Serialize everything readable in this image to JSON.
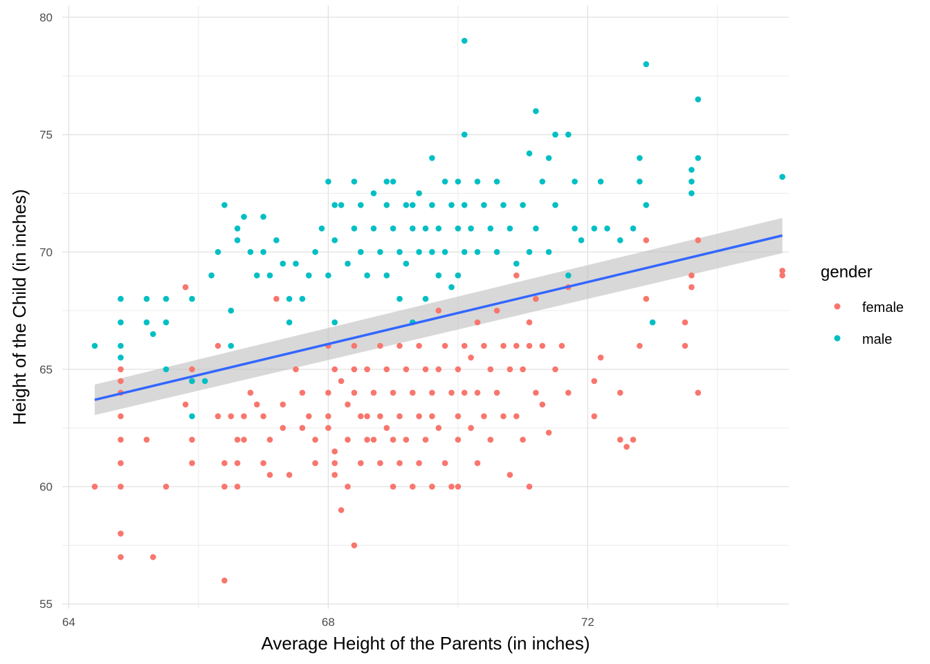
{
  "chart_data": {
    "type": "scatter",
    "xlabel": "Average Height of the Parents (in inches)",
    "ylabel": "Height of the Child (in inches)",
    "xlim": [
      63.9,
      75.1
    ],
    "ylim": [
      54.8,
      80.5
    ],
    "x_ticks": [
      64,
      68,
      72
    ],
    "x_tick_labels": [
      "64",
      "68",
      "72"
    ],
    "y_ticks": [
      55,
      60,
      65,
      70,
      75,
      80
    ],
    "y_tick_labels": [
      "55",
      "60",
      "65",
      "70",
      "75",
      "80"
    ],
    "x_minor_grid": [
      66,
      70,
      74
    ],
    "y_minor_grid": [
      57.5,
      62.5,
      67.5,
      72.5,
      77.5
    ],
    "grid": true,
    "legend": {
      "title": "gender",
      "position": "right",
      "entries": [
        {
          "label": "female",
          "color": "#F8766D"
        },
        {
          "label": "male",
          "color": "#00BFC4"
        }
      ]
    },
    "series": [
      {
        "name": "female",
        "color": "#F8766D",
        "points": [
          [
            64.4,
            60
          ],
          [
            64.8,
            65
          ],
          [
            64.8,
            64.5
          ],
          [
            64.8,
            64
          ],
          [
            64.8,
            63
          ],
          [
            64.8,
            62
          ],
          [
            64.8,
            61
          ],
          [
            64.8,
            60
          ],
          [
            64.8,
            58
          ],
          [
            64.8,
            57
          ],
          [
            65.2,
            62
          ],
          [
            65.3,
            57
          ],
          [
            65.5,
            60
          ],
          [
            65.8,
            68.5
          ],
          [
            65.8,
            63.5
          ],
          [
            65.9,
            65
          ],
          [
            65.9,
            64.5
          ],
          [
            65.9,
            62
          ],
          [
            65.9,
            61
          ],
          [
            66.3,
            63
          ],
          [
            66.3,
            66
          ],
          [
            66.4,
            61
          ],
          [
            66.4,
            60
          ],
          [
            66.4,
            56
          ],
          [
            66.5,
            63
          ],
          [
            66.6,
            62
          ],
          [
            66.6,
            61
          ],
          [
            66.6,
            60
          ],
          [
            66.7,
            63
          ],
          [
            66.7,
            62
          ],
          [
            66.8,
            64
          ],
          [
            66.9,
            63.5
          ],
          [
            67,
            63
          ],
          [
            67,
            61
          ],
          [
            67.1,
            62
          ],
          [
            67.1,
            60.5
          ],
          [
            67.2,
            68
          ],
          [
            67.3,
            63.5
          ],
          [
            67.3,
            62.5
          ],
          [
            67.4,
            60.5
          ],
          [
            67.5,
            65
          ],
          [
            67.6,
            64
          ],
          [
            67.6,
            62.5
          ],
          [
            67.7,
            63
          ],
          [
            67.8,
            62
          ],
          [
            67.8,
            61
          ],
          [
            68,
            66
          ],
          [
            68,
            64
          ],
          [
            68,
            63
          ],
          [
            68,
            62.5
          ],
          [
            68.1,
            65
          ],
          [
            68.1,
            61.5
          ],
          [
            68.1,
            61
          ],
          [
            68.1,
            60.5
          ],
          [
            68.2,
            64.5
          ],
          [
            68.2,
            59
          ],
          [
            68.3,
            63.5
          ],
          [
            68.3,
            62
          ],
          [
            68.3,
            60
          ],
          [
            68.4,
            66
          ],
          [
            68.4,
            65
          ],
          [
            68.4,
            64
          ],
          [
            68.4,
            57.5
          ],
          [
            68.5,
            63
          ],
          [
            68.5,
            61
          ],
          [
            68.6,
            65
          ],
          [
            68.6,
            63
          ],
          [
            68.6,
            62
          ],
          [
            68.7,
            64
          ],
          [
            68.7,
            62
          ],
          [
            68.8,
            66
          ],
          [
            68.8,
            63
          ],
          [
            68.8,
            61
          ],
          [
            68.9,
            65
          ],
          [
            68.9,
            62.5
          ],
          [
            69,
            64
          ],
          [
            69,
            62
          ],
          [
            69,
            60
          ],
          [
            69.1,
            66
          ],
          [
            69.1,
            63
          ],
          [
            69.1,
            61
          ],
          [
            69.2,
            65
          ],
          [
            69.2,
            62
          ],
          [
            69.3,
            64
          ],
          [
            69.3,
            60
          ],
          [
            69.4,
            66
          ],
          [
            69.4,
            63
          ],
          [
            69.4,
            61
          ],
          [
            69.5,
            65
          ],
          [
            69.5,
            62
          ],
          [
            69.6,
            64
          ],
          [
            69.6,
            63
          ],
          [
            69.6,
            60
          ],
          [
            69.7,
            67.5
          ],
          [
            69.7,
            65
          ],
          [
            69.7,
            62.5
          ],
          [
            69.8,
            66
          ],
          [
            69.8,
            61
          ],
          [
            69.9,
            64
          ],
          [
            69.9,
            60
          ],
          [
            70,
            65
          ],
          [
            70,
            63
          ],
          [
            70,
            62
          ],
          [
            70,
            60
          ],
          [
            70.1,
            66
          ],
          [
            70.1,
            64
          ],
          [
            70.2,
            65.5
          ],
          [
            70.2,
            62.5
          ],
          [
            70.3,
            67
          ],
          [
            70.3,
            64
          ],
          [
            70.3,
            61
          ],
          [
            70.4,
            66
          ],
          [
            70.4,
            63
          ],
          [
            70.5,
            65
          ],
          [
            70.5,
            62
          ],
          [
            70.6,
            67.5
          ],
          [
            70.6,
            64
          ],
          [
            70.7,
            66
          ],
          [
            70.7,
            63
          ],
          [
            70.8,
            65
          ],
          [
            70.8,
            60.5
          ],
          [
            70.9,
            69
          ],
          [
            70.9,
            66
          ],
          [
            70.9,
            63
          ],
          [
            71,
            65
          ],
          [
            71,
            62
          ],
          [
            71.1,
            67
          ],
          [
            71.1,
            66
          ],
          [
            71.1,
            60
          ],
          [
            71.2,
            68
          ],
          [
            71.2,
            64
          ],
          [
            71.3,
            66
          ],
          [
            71.3,
            63.5
          ],
          [
            71.4,
            62.3
          ],
          [
            71.5,
            65
          ],
          [
            71.6,
            66
          ],
          [
            71.7,
            68.5
          ],
          [
            71.7,
            64
          ],
          [
            72.1,
            64.5
          ],
          [
            72.1,
            63
          ],
          [
            72.2,
            65.5
          ],
          [
            72.5,
            64
          ],
          [
            72.5,
            62
          ],
          [
            72.6,
            61.7
          ],
          [
            72.7,
            62
          ],
          [
            72.8,
            66
          ],
          [
            72.9,
            70.5
          ],
          [
            72.9,
            68
          ],
          [
            73.5,
            67
          ],
          [
            73.5,
            66
          ],
          [
            73.6,
            69
          ],
          [
            73.6,
            68.5
          ],
          [
            73.7,
            70.5
          ],
          [
            73.7,
            64
          ],
          [
            75,
            69.2
          ],
          [
            75,
            69
          ]
        ]
      },
      {
        "name": "male",
        "color": "#00BFC4",
        "points": [
          [
            64.4,
            66
          ],
          [
            64.8,
            68
          ],
          [
            64.8,
            67
          ],
          [
            64.8,
            66
          ],
          [
            64.8,
            65.5
          ],
          [
            65.2,
            68
          ],
          [
            65.2,
            67
          ],
          [
            65.3,
            66.5
          ],
          [
            65.5,
            68
          ],
          [
            65.5,
            67
          ],
          [
            65.5,
            65
          ],
          [
            65.9,
            68
          ],
          [
            65.9,
            64.5
          ],
          [
            65.9,
            63
          ],
          [
            66.1,
            64.5
          ],
          [
            66.2,
            69
          ],
          [
            66.3,
            70
          ],
          [
            66.4,
            72
          ],
          [
            66.5,
            67.5
          ],
          [
            66.5,
            66
          ],
          [
            66.6,
            71
          ],
          [
            66.6,
            70.5
          ],
          [
            66.7,
            71.5
          ],
          [
            66.8,
            70
          ],
          [
            66.9,
            69
          ],
          [
            67,
            71.5
          ],
          [
            67,
            70
          ],
          [
            67.1,
            69
          ],
          [
            67.2,
            70.5
          ],
          [
            67.3,
            69.5
          ],
          [
            67.4,
            67
          ],
          [
            67.4,
            68
          ],
          [
            67.5,
            69.5
          ],
          [
            67.6,
            68
          ],
          [
            67.7,
            69
          ],
          [
            67.8,
            70
          ],
          [
            67.9,
            71
          ],
          [
            68,
            73
          ],
          [
            68,
            69
          ],
          [
            68.1,
            72
          ],
          [
            68.1,
            70.5
          ],
          [
            68.1,
            67
          ],
          [
            68.2,
            72
          ],
          [
            68.3,
            69.5
          ],
          [
            68.4,
            73
          ],
          [
            68.4,
            71
          ],
          [
            68.5,
            72
          ],
          [
            68.5,
            70
          ],
          [
            68.6,
            69
          ],
          [
            68.7,
            72.5
          ],
          [
            68.7,
            71
          ],
          [
            68.8,
            70
          ],
          [
            68.9,
            72
          ],
          [
            68.9,
            69
          ],
          [
            69,
            73
          ],
          [
            69,
            71
          ],
          [
            69.1,
            70
          ],
          [
            69.1,
            68
          ],
          [
            69.2,
            72
          ],
          [
            69.2,
            69.5
          ],
          [
            69.3,
            71
          ],
          [
            69.3,
            67
          ],
          [
            69.4,
            72.5
          ],
          [
            69.4,
            70
          ],
          [
            69.5,
            71
          ],
          [
            69.5,
            68
          ],
          [
            69.6,
            72
          ],
          [
            69.6,
            70
          ],
          [
            69.7,
            71
          ],
          [
            69.7,
            69
          ],
          [
            69.8,
            73
          ],
          [
            69.8,
            70
          ],
          [
            69.9,
            72
          ],
          [
            69.9,
            68.5
          ],
          [
            70,
            73
          ],
          [
            70,
            71
          ],
          [
            70,
            69
          ],
          [
            70.1,
            75
          ],
          [
            70.1,
            72
          ],
          [
            70.1,
            70
          ],
          [
            70.2,
            71
          ],
          [
            70.3,
            73
          ],
          [
            70.3,
            70
          ],
          [
            70.4,
            72
          ],
          [
            70.5,
            71
          ],
          [
            70.6,
            73
          ],
          [
            70.6,
            70
          ],
          [
            70.7,
            72
          ],
          [
            70.8,
            71
          ],
          [
            70.9,
            69.5
          ],
          [
            71,
            72
          ],
          [
            71.1,
            74.2
          ],
          [
            71.1,
            70
          ],
          [
            71.2,
            76
          ],
          [
            71.2,
            71
          ],
          [
            71.3,
            73
          ],
          [
            71.4,
            74
          ],
          [
            71.4,
            70
          ],
          [
            71.5,
            75
          ],
          [
            71.5,
            72
          ],
          [
            71.7,
            75
          ],
          [
            71.7,
            69
          ],
          [
            71.8,
            73
          ],
          [
            71.8,
            71
          ],
          [
            71.9,
            70.5
          ],
          [
            72.1,
            71
          ],
          [
            72.2,
            73
          ],
          [
            72.3,
            71
          ],
          [
            72.5,
            70.5
          ],
          [
            72.7,
            71
          ],
          [
            72.8,
            73
          ],
          [
            72.8,
            74
          ],
          [
            72.9,
            72
          ],
          [
            72.9,
            78
          ],
          [
            73.0,
            67
          ],
          [
            73.6,
            73
          ],
          [
            73.6,
            72.5
          ],
          [
            73.7,
            76.5
          ],
          [
            73.7,
            74
          ],
          [
            73.6,
            73.5
          ],
          [
            75,
            73.2
          ],
          [
            70.1,
            79
          ],
          [
            69.6,
            74
          ],
          [
            68.9,
            73
          ],
          [
            69.3,
            72
          ]
        ]
      }
    ],
    "trend": {
      "type": "lm",
      "color": "#3366FF",
      "band_color": "#BEBEBE",
      "x": [
        64.4,
        75
      ],
      "y": [
        63.7,
        70.7
      ],
      "band_lower": [
        63.05,
        69.95
      ],
      "band_upper": [
        64.35,
        71.45
      ]
    }
  }
}
